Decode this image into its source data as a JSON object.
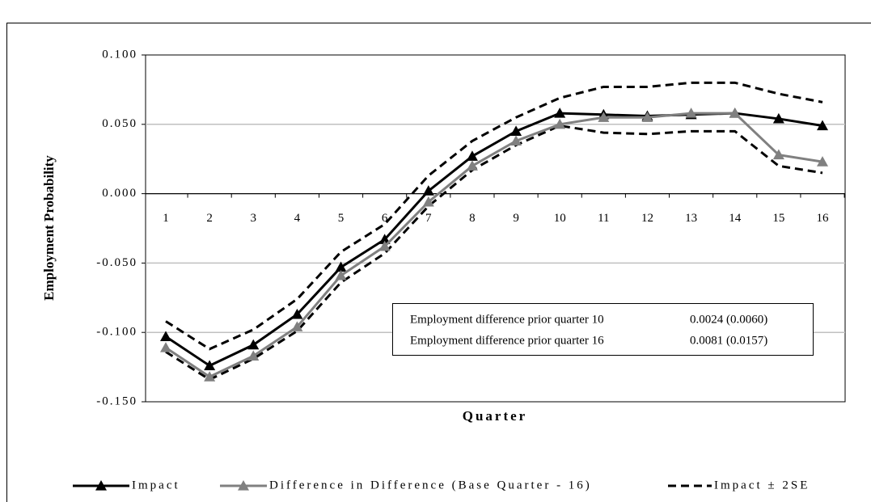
{
  "chart_data": {
    "type": "line",
    "ylabel": "Employment Probability",
    "xlabel": "Quarter",
    "categories": [
      "1",
      "2",
      "3",
      "4",
      "5",
      "6",
      "7",
      "8",
      "9",
      "10",
      "11",
      "12",
      "13",
      "14",
      "15",
      "16"
    ],
    "ylim": [
      -0.15,
      0.1
    ],
    "yticks": [
      {
        "value": -0.15,
        "label": "-0.150"
      },
      {
        "value": -0.1,
        "label": "-0.100"
      },
      {
        "value": -0.05,
        "label": "-0.050"
      },
      {
        "value": 0,
        "label": "0.000"
      },
      {
        "value": 0.05,
        "label": "0.050"
      },
      {
        "value": 0.1,
        "label": "0.100"
      }
    ],
    "grid": true,
    "legend": "bottom",
    "series": [
      {
        "name": "Impact",
        "color": "#000000",
        "marker": "triangle",
        "values": [
          -0.103,
          -0.124,
          -0.109,
          -0.087,
          -0.053,
          -0.033,
          0.002,
          0.027,
          0.045,
          0.058,
          0.057,
          0.056,
          0.057,
          0.058,
          0.054,
          0.049
        ]
      },
      {
        "name": "Difference in Difference (Base Quarter - 16)",
        "color": "#808080",
        "marker": "triangle",
        "values": [
          -0.111,
          -0.132,
          -0.117,
          -0.096,
          -0.059,
          -0.038,
          -0.006,
          0.02,
          0.038,
          0.05,
          0.055,
          0.055,
          0.058,
          0.058,
          0.028,
          0.023
        ]
      },
      {
        "name": "Impact ± 2SE",
        "color": "#000000",
        "dashed": true,
        "upper": [
          -0.092,
          -0.112,
          -0.098,
          -0.076,
          -0.042,
          -0.022,
          0.013,
          0.038,
          0.055,
          0.069,
          0.077,
          0.077,
          0.08,
          0.08,
          0.072,
          0.066
        ],
        "lower": [
          -0.114,
          -0.134,
          -0.119,
          -0.099,
          -0.064,
          -0.043,
          -0.009,
          0.017,
          0.035,
          0.049,
          0.044,
          0.043,
          0.045,
          0.045,
          0.02,
          0.015
        ]
      }
    ],
    "annotation": {
      "rows": [
        [
          "Employment difference prior quarter 10",
          "0.0024 (0.0060)"
        ],
        [
          "Employment difference prior quarter 16",
          "0.0081 (0.0157)"
        ]
      ]
    }
  }
}
